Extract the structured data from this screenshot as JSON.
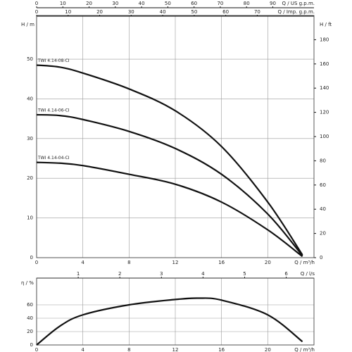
{
  "chart_data": [
    {
      "type": "line",
      "x_label": "Q / m³/h",
      "y_label": "H / m",
      "y2_label": "H / ft",
      "xlim": [
        0,
        24
      ],
      "xticks": [
        0,
        4,
        8,
        12,
        16,
        20
      ],
      "ylim": [
        0,
        61
      ],
      "yticks": [
        0,
        10,
        20,
        30,
        40,
        50
      ],
      "y2lim": [
        0,
        200
      ],
      "y2ticks": [
        0,
        20,
        40,
        60,
        80,
        100,
        120,
        140,
        160,
        180
      ],
      "top_axes": [
        {
          "label": "Q / US g.p.m.",
          "lim": [
            0,
            105.7
          ],
          "ticks": [
            0,
            10,
            20,
            30,
            40,
            50,
            60,
            70,
            80,
            90
          ]
        },
        {
          "label": "Q / Imp. g.p.m.",
          "lim": [
            0,
            88
          ],
          "ticks": [
            0,
            10,
            20,
            30,
            40,
            50,
            60,
            70
          ]
        }
      ],
      "grid": true,
      "x": [
        0,
        2,
        4,
        8,
        12,
        16,
        20,
        23
      ],
      "series": [
        {
          "name": "TWI 4.14-08-CI",
          "color": "#111111",
          "values": [
            48.5,
            48,
            46.5,
            42.5,
            37,
            28,
            14,
            0.7
          ]
        },
        {
          "name": "TWI 4.14-06-CI",
          "color": "#111111",
          "values": [
            36,
            35.8,
            34.8,
            31.8,
            27.5,
            21,
            11,
            0.5
          ]
        },
        {
          "name": "TWI 4.14-04-CI",
          "color": "#111111",
          "values": [
            24,
            23.8,
            23.2,
            21,
            18.5,
            14,
            7,
            0.3
          ]
        }
      ]
    },
    {
      "type": "line",
      "x_label": "Q / m³/h",
      "y_label": "η / %",
      "xlim": [
        0,
        24
      ],
      "xticks": [
        0,
        4,
        8,
        12,
        16,
        20
      ],
      "ylim": [
        0,
        100
      ],
      "yticks": [
        0,
        20,
        40,
        60
      ],
      "top_axes": [
        {
          "label": "Q / l/s",
          "lim": [
            0,
            6.667
          ],
          "ticks": [
            1,
            2,
            3,
            4,
            5,
            6
          ]
        }
      ],
      "grid": true,
      "x": [
        0,
        2,
        4,
        8,
        12,
        14,
        16,
        20,
        23
      ],
      "series": [
        {
          "color": "#111111",
          "values": [
            0,
            28,
            45,
            60,
            68,
            70,
            67,
            45,
            5
          ]
        }
      ]
    }
  ]
}
